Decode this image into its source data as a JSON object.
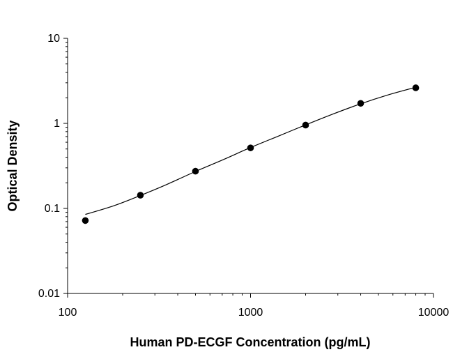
{
  "chart_data": {
    "type": "scatter",
    "title": "",
    "xlabel": "Human PD-ECGF Concentration (pg/mL)",
    "ylabel": "Optical Density",
    "xscale": "log",
    "yscale": "log",
    "xlim": [
      100,
      10000
    ],
    "ylim": [
      0.01,
      10
    ],
    "xticks": [
      "100",
      "1000",
      "10000"
    ],
    "yticks": [
      "10",
      "1",
      "0.1",
      "0.01"
    ],
    "grid": false,
    "legend": "none",
    "marker_color": "#000000",
    "series": [
      {
        "points": [
          {
            "x": 125,
            "y": 0.072
          },
          {
            "x": 250,
            "y": 0.143
          },
          {
            "x": 500,
            "y": 0.274
          },
          {
            "x": 1000,
            "y": 0.515
          },
          {
            "x": 2000,
            "y": 0.955
          },
          {
            "x": 4000,
            "y": 1.72
          },
          {
            "x": 8000,
            "y": 2.62
          }
        ]
      }
    ],
    "fit_curve": {
      "type": "4PL",
      "color": "#000000",
      "points": [
        {
          "x": 125,
          "y": 0.085
        },
        {
          "x": 180,
          "y": 0.108
        },
        {
          "x": 250,
          "y": 0.142
        },
        {
          "x": 350,
          "y": 0.192
        },
        {
          "x": 500,
          "y": 0.272
        },
        {
          "x": 700,
          "y": 0.37
        },
        {
          "x": 1000,
          "y": 0.52
        },
        {
          "x": 1400,
          "y": 0.7
        },
        {
          "x": 2000,
          "y": 0.96
        },
        {
          "x": 2800,
          "y": 1.28
        },
        {
          "x": 4000,
          "y": 1.7
        },
        {
          "x": 5600,
          "y": 2.15
        },
        {
          "x": 8000,
          "y": 2.66
        }
      ]
    }
  }
}
